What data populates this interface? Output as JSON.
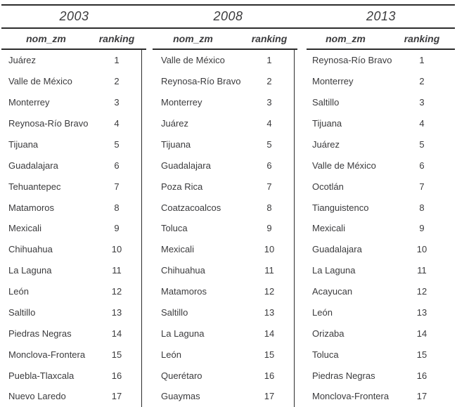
{
  "colors": {
    "background": "#ffffff",
    "text": "#3b3b3d",
    "rule": "#2c2c2c"
  },
  "table": {
    "groups": [
      {
        "year": "2003",
        "columns": {
          "name": "nom_zm",
          "rank": "ranking"
        },
        "rows": [
          {
            "name": "Juárez",
            "rank": "1"
          },
          {
            "name": "Valle de México",
            "rank": "2"
          },
          {
            "name": "Monterrey",
            "rank": "3"
          },
          {
            "name": "Reynosa-Río Bravo",
            "rank": "4"
          },
          {
            "name": "Tijuana",
            "rank": "5"
          },
          {
            "name": "Guadalajara",
            "rank": "6"
          },
          {
            "name": "Tehuantepec",
            "rank": "7"
          },
          {
            "name": "Matamoros",
            "rank": "8"
          },
          {
            "name": "Mexicali",
            "rank": "9"
          },
          {
            "name": "Chihuahua",
            "rank": "10"
          },
          {
            "name": "La Laguna",
            "rank": "11"
          },
          {
            "name": "León",
            "rank": "12"
          },
          {
            "name": "Saltillo",
            "rank": "13"
          },
          {
            "name": "Piedras Negras",
            "rank": "14"
          },
          {
            "name": "Monclova-Frontera",
            "rank": "15"
          },
          {
            "name": "Puebla-Tlaxcala",
            "rank": "16"
          },
          {
            "name": "Nuevo Laredo",
            "rank": "17"
          }
        ]
      },
      {
        "year": "2008",
        "columns": {
          "name": "nom_zm",
          "rank": "ranking"
        },
        "rows": [
          {
            "name": "Valle de México",
            "rank": "1"
          },
          {
            "name": "Reynosa-Río Bravo",
            "rank": "2"
          },
          {
            "name": "Monterrey",
            "rank": "3"
          },
          {
            "name": "Juárez",
            "rank": "4"
          },
          {
            "name": "Tijuana",
            "rank": "5"
          },
          {
            "name": "Guadalajara",
            "rank": "6"
          },
          {
            "name": "Poza Rica",
            "rank": "7"
          },
          {
            "name": "Coatzacoalcos",
            "rank": "8"
          },
          {
            "name": "Toluca",
            "rank": "9"
          },
          {
            "name": "Mexicali",
            "rank": "10"
          },
          {
            "name": "Chihuahua",
            "rank": "11"
          },
          {
            "name": "Matamoros",
            "rank": "12"
          },
          {
            "name": "Saltillo",
            "rank": "13"
          },
          {
            "name": "La Laguna",
            "rank": "14"
          },
          {
            "name": "León",
            "rank": "15"
          },
          {
            "name": "Querétaro",
            "rank": "16"
          },
          {
            "name": "Guaymas",
            "rank": "17"
          }
        ]
      },
      {
        "year": "2013",
        "columns": {
          "name": "nom_zm",
          "rank": "ranking"
        },
        "rows": [
          {
            "name": "Reynosa-Río Bravo",
            "rank": "1"
          },
          {
            "name": "Monterrey",
            "rank": "2"
          },
          {
            "name": "Saltillo",
            "rank": "3"
          },
          {
            "name": "Tijuana",
            "rank": "4"
          },
          {
            "name": "Juárez",
            "rank": "5"
          },
          {
            "name": "Valle de México",
            "rank": "6"
          },
          {
            "name": "Ocotlán",
            "rank": "7"
          },
          {
            "name": "Tianguistenco",
            "rank": "8"
          },
          {
            "name": "Mexicali",
            "rank": "9"
          },
          {
            "name": "Guadalajara",
            "rank": "10"
          },
          {
            "name": "La Laguna",
            "rank": "11"
          },
          {
            "name": "Acayucan",
            "rank": "12"
          },
          {
            "name": "León",
            "rank": "13"
          },
          {
            "name": "Orizaba",
            "rank": "14"
          },
          {
            "name": "Toluca",
            "rank": "15"
          },
          {
            "name": "Piedras Negras",
            "rank": "16"
          },
          {
            "name": "Monclova-Frontera",
            "rank": "17"
          }
        ]
      }
    ]
  }
}
